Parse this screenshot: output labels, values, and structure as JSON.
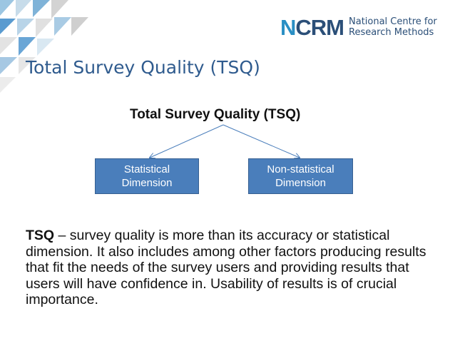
{
  "logo": {
    "mark_n": "N",
    "mark_rest": "CRM",
    "line1": "National Centre for",
    "line2": "Research Methods"
  },
  "slide": {
    "title": "Total Survey Quality (TSQ)"
  },
  "diagram": {
    "title": "Total Survey Quality (TSQ)",
    "boxes": [
      {
        "label": "Statistical Dimension"
      },
      {
        "label": "Non-statistical Dimension"
      }
    ]
  },
  "body": {
    "term": "TSQ",
    "text": " – survey quality is more than its accuracy or statistical dimension. It also includes among other factors producing results that fit the needs of the survey users and providing results that users will have confidence in. Usability of results is of crucial importance."
  },
  "colors": {
    "accent_blue": "#4a7ebb",
    "title_blue": "#2f5b8e",
    "logo_blue": "#2b4f78"
  }
}
